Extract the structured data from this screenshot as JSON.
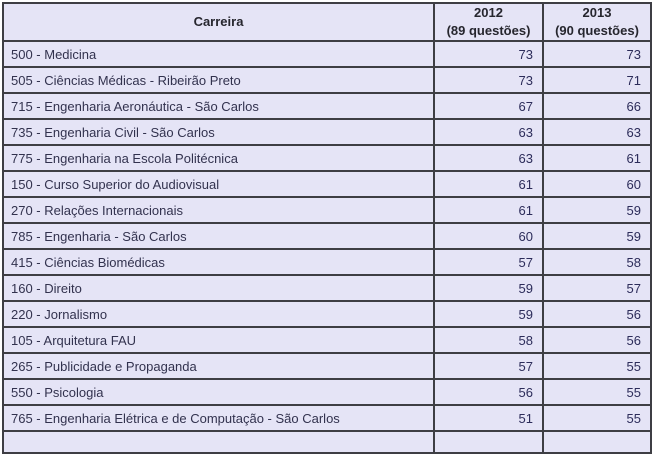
{
  "chart_data": {
    "type": "table",
    "title": "",
    "columns": [
      {
        "label": "Carreira",
        "sublabel": ""
      },
      {
        "label": "2012",
        "sublabel": "(89 questões)"
      },
      {
        "label": "2013",
        "sublabel": "(90 questões)"
      }
    ],
    "rows": [
      [
        "500 - Medicina",
        73,
        73
      ],
      [
        "505 - Ciências Médicas - Ribeirão Preto",
        73,
        71
      ],
      [
        "715 - Engenharia Aeronáutica - São Carlos",
        67,
        66
      ],
      [
        "735 - Engenharia Civil - São Carlos",
        63,
        63
      ],
      [
        "775 - Engenharia na Escola Politécnica",
        63,
        61
      ],
      [
        "150 - Curso Superior do Audiovisual",
        61,
        60
      ],
      [
        "270 - Relações Internacionais",
        61,
        59
      ],
      [
        "785 - Engenharia - São Carlos",
        60,
        59
      ],
      [
        "415 - Ciências Biomédicas",
        57,
        58
      ],
      [
        "160 - Direito",
        59,
        57
      ],
      [
        "220 - Jornalismo",
        59,
        56
      ],
      [
        "105 - Arquitetura FAU",
        58,
        56
      ],
      [
        "265 - Publicidade e Propaganda",
        57,
        55
      ],
      [
        "550 - Psicologia",
        56,
        55
      ],
      [
        "765 - Engenharia Elétrica e de Computação - São Carlos",
        51,
        55
      ]
    ]
  },
  "colors": {
    "cell_bg": "#e5e4f6",
    "border": "#3e3e44",
    "label_text": "#32324e",
    "number_text": "#2c2c5a",
    "header_text": "#26262e",
    "page_bg": "#ffffff"
  }
}
